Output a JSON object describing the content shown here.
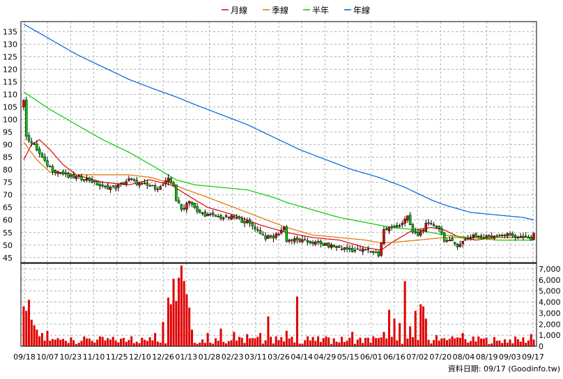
{
  "legend": [
    {
      "label": "月線",
      "color": "#e00000"
    },
    {
      "label": "季線",
      "color": "#e07000"
    },
    {
      "label": "半年",
      "color": "#00cc00"
    },
    {
      "label": "年線",
      "color": "#0060e0"
    }
  ],
  "source_text": "資料日期: 09/17  (Goodinfo.tw)",
  "colors": {
    "up_candle": "#e00000",
    "down_candle": "#00c000",
    "volume_bar": "#e00000",
    "grid": "#b0b0b0"
  },
  "chart_data": [
    {
      "type": "candlestick",
      "title": "",
      "grid": true,
      "legend_position": "top",
      "ylim": [
        43,
        139
      ],
      "y_ticks": [
        "135",
        "130",
        "125",
        "120",
        "115",
        "110",
        "105",
        "100",
        "95",
        "90",
        "85",
        "80",
        "75",
        "70",
        "65",
        "60",
        "55",
        "50",
        "45"
      ],
      "x_ticks": [
        "09/18",
        "10/07",
        "10/23",
        "11/10",
        "11/25",
        "12/10",
        "12/26",
        "01/13",
        "01/28",
        "02/23",
        "03/11",
        "03/26",
        "04/14",
        "04/29",
        "05/15",
        "06/01",
        "06/16",
        "07/02",
        "07/20",
        "08/04",
        "08/19",
        "09/03",
        "09/17"
      ],
      "close_anchors": [
        [
          0,
          107
        ],
        [
          1,
          94
        ],
        [
          2,
          92
        ],
        [
          5,
          88
        ],
        [
          8,
          83
        ],
        [
          11,
          80
        ],
        [
          14,
          79
        ],
        [
          17,
          77
        ],
        [
          20,
          77
        ],
        [
          25,
          76
        ],
        [
          30,
          73
        ],
        [
          35,
          73
        ],
        [
          40,
          76
        ],
        [
          45,
          74
        ],
        [
          50,
          73
        ],
        [
          52,
          73
        ],
        [
          55,
          76
        ],
        [
          57,
          74
        ],
        [
          58,
          68
        ],
        [
          60,
          64
        ],
        [
          63,
          68
        ],
        [
          66,
          63
        ],
        [
          70,
          62
        ],
        [
          75,
          61
        ],
        [
          80,
          61
        ],
        [
          85,
          59
        ],
        [
          88,
          57
        ],
        [
          90,
          55
        ],
        [
          92,
          53
        ],
        [
          95,
          53
        ],
        [
          97,
          55
        ],
        [
          99,
          57
        ],
        [
          100,
          52
        ],
        [
          103,
          52
        ],
        [
          110,
          51
        ],
        [
          115,
          50
        ],
        [
          120,
          49
        ],
        [
          125,
          48
        ],
        [
          130,
          48
        ],
        [
          134,
          47
        ],
        [
          135,
          46
        ],
        [
          137,
          56
        ],
        [
          140,
          57
        ],
        [
          143,
          58
        ],
        [
          146,
          61
        ],
        [
          148,
          55
        ],
        [
          150,
          54
        ],
        [
          153,
          58
        ],
        [
          156,
          58
        ],
        [
          158,
          57
        ],
        [
          160,
          52
        ],
        [
          163,
          51
        ],
        [
          165,
          50
        ],
        [
          168,
          52
        ],
        [
          171,
          54
        ],
        [
          175,
          53
        ],
        [
          180,
          54
        ],
        [
          185,
          54
        ],
        [
          190,
          53
        ],
        [
          193,
          52
        ],
        [
          194,
          55
        ]
      ],
      "moving_averages": {
        "月線": [
          [
            0,
            84
          ],
          [
            3,
            90
          ],
          [
            6,
            92
          ],
          [
            10,
            88
          ],
          [
            15,
            82
          ],
          [
            20,
            78
          ],
          [
            30,
            75
          ],
          [
            40,
            74
          ],
          [
            48,
            76
          ],
          [
            52,
            75
          ],
          [
            56,
            74
          ],
          [
            62,
            70
          ],
          [
            70,
            65
          ],
          [
            80,
            62
          ],
          [
            90,
            58
          ],
          [
            100,
            55
          ],
          [
            110,
            53
          ],
          [
            120,
            52
          ],
          [
            130,
            49
          ],
          [
            136,
            48
          ],
          [
            140,
            51
          ],
          [
            148,
            56
          ],
          [
            155,
            57
          ],
          [
            160,
            56
          ],
          [
            166,
            53
          ],
          [
            172,
            52
          ],
          [
            180,
            53
          ],
          [
            188,
            53
          ],
          [
            194,
            53
          ]
        ],
        "季線": [
          [
            0,
            91
          ],
          [
            5,
            84
          ],
          [
            10,
            79
          ],
          [
            20,
            78
          ],
          [
            30,
            78
          ],
          [
            40,
            78
          ],
          [
            48,
            77
          ],
          [
            55,
            75
          ],
          [
            62,
            72
          ],
          [
            70,
            69
          ],
          [
            80,
            65
          ],
          [
            90,
            61
          ],
          [
            100,
            57
          ],
          [
            110,
            54
          ],
          [
            120,
            53
          ],
          [
            130,
            52
          ],
          [
            135,
            51
          ],
          [
            140,
            51
          ],
          [
            150,
            52
          ],
          [
            160,
            53
          ],
          [
            170,
            53
          ],
          [
            180,
            53
          ],
          [
            194,
            53
          ]
        ],
        "半年": [
          [
            0,
            111
          ],
          [
            10,
            104
          ],
          [
            20,
            98
          ],
          [
            30,
            92
          ],
          [
            40,
            87
          ],
          [
            50,
            81
          ],
          [
            58,
            76
          ],
          [
            65,
            74
          ],
          [
            75,
            73
          ],
          [
            85,
            72
          ],
          [
            95,
            69
          ],
          [
            100,
            67
          ],
          [
            110,
            64
          ],
          [
            120,
            61
          ],
          [
            130,
            59
          ],
          [
            140,
            57
          ],
          [
            150,
            56
          ],
          [
            160,
            54
          ],
          [
            170,
            53
          ],
          [
            180,
            52
          ],
          [
            190,
            52
          ],
          [
            194,
            52
          ]
        ],
        "年線": [
          [
            0,
            138
          ],
          [
            10,
            132
          ],
          [
            20,
            126
          ],
          [
            30,
            121
          ],
          [
            40,
            116
          ],
          [
            50,
            112
          ],
          [
            58,
            109
          ],
          [
            65,
            106
          ],
          [
            75,
            102
          ],
          [
            85,
            98
          ],
          [
            95,
            93
          ],
          [
            105,
            88
          ],
          [
            115,
            84
          ],
          [
            125,
            80
          ],
          [
            135,
            77
          ],
          [
            145,
            73
          ],
          [
            155,
            68
          ],
          [
            160,
            66
          ],
          [
            170,
            63
          ],
          [
            180,
            62
          ],
          [
            190,
            61
          ],
          [
            194,
            60
          ]
        ]
      }
    },
    {
      "type": "bar",
      "title": "",
      "series_label": "",
      "ylim": [
        0,
        7500
      ],
      "y_ticks": [
        "7,000",
        "6,000",
        "5,000",
        "4,000",
        "3,000",
        "2,000",
        "1,000",
        "0"
      ],
      "spikes": [
        [
          0,
          3600
        ],
        [
          1,
          3200
        ],
        [
          2,
          4200
        ],
        [
          3,
          2400
        ],
        [
          4,
          1900
        ],
        [
          5,
          1500
        ],
        [
          7,
          1200
        ],
        [
          9,
          1400
        ],
        [
          12,
          600
        ],
        [
          18,
          800
        ],
        [
          25,
          700
        ],
        [
          33,
          600
        ],
        [
          41,
          900
        ],
        [
          50,
          1200
        ],
        [
          53,
          2200
        ],
        [
          55,
          4400
        ],
        [
          56,
          3800
        ],
        [
          57,
          6100
        ],
        [
          58,
          4100
        ],
        [
          59,
          6200
        ],
        [
          60,
          7300
        ],
        [
          61,
          5900
        ],
        [
          62,
          4700
        ],
        [
          63,
          3500
        ],
        [
          64,
          1500
        ],
        [
          70,
          1200
        ],
        [
          75,
          1600
        ],
        [
          80,
          1300
        ],
        [
          85,
          1100
        ],
        [
          90,
          1200
        ],
        [
          93,
          2700
        ],
        [
          96,
          900
        ],
        [
          100,
          1400
        ],
        [
          104,
          4500
        ],
        [
          108,
          900
        ],
        [
          116,
          800
        ],
        [
          125,
          1300
        ],
        [
          133,
          900
        ],
        [
          137,
          1300
        ],
        [
          139,
          3300
        ],
        [
          141,
          2500
        ],
        [
          143,
          2100
        ],
        [
          145,
          5900
        ],
        [
          147,
          1800
        ],
        [
          149,
          3200
        ],
        [
          151,
          3800
        ],
        [
          152,
          3600
        ],
        [
          153,
          2500
        ],
        [
          157,
          1000
        ],
        [
          163,
          900
        ],
        [
          167,
          1200
        ],
        [
          174,
          700
        ],
        [
          180,
          500
        ],
        [
          185,
          600
        ],
        [
          190,
          800
        ],
        [
          193,
          1100
        ],
        [
          194,
          600
        ]
      ]
    }
  ]
}
